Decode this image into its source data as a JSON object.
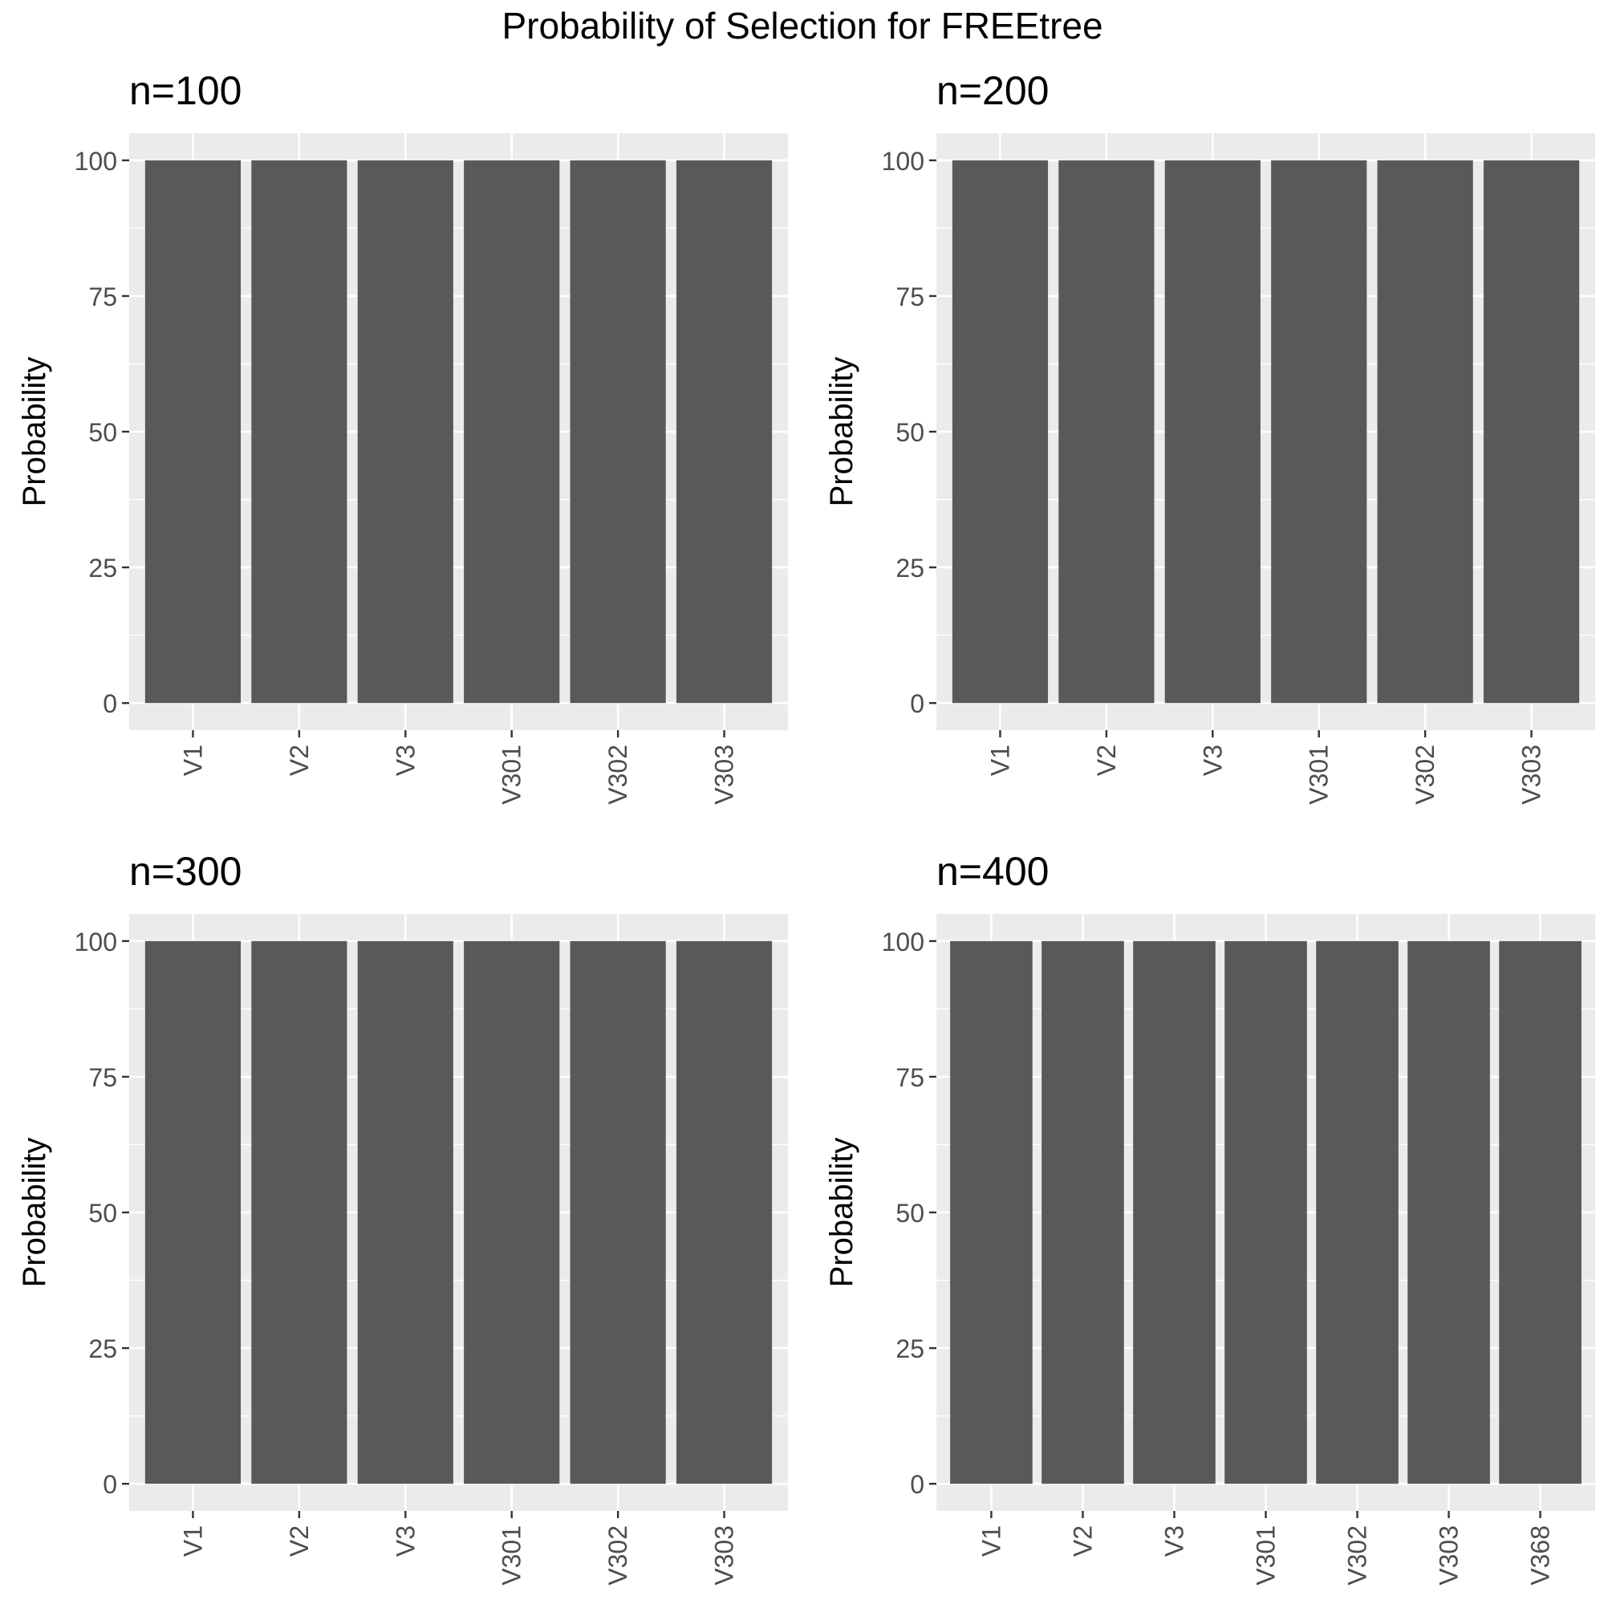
{
  "figure": {
    "title": "Probability of Selection for FREEtree"
  },
  "colors": {
    "panel_background": "#ebebeb",
    "grid": "#ffffff",
    "bar": "#595959",
    "tick_text": "#4d4d4d",
    "tick_mark": "#333333"
  },
  "chart_data": [
    {
      "type": "bar",
      "title": "n=100",
      "xlabel": "",
      "ylabel": "Probability",
      "ylim": [
        -5,
        105
      ],
      "yticks": [
        0,
        25,
        50,
        75,
        100
      ],
      "grid": true,
      "categories": [
        "V1",
        "V2",
        "V3",
        "V301",
        "V302",
        "V303"
      ],
      "values": [
        100,
        100,
        100,
        100,
        100,
        100
      ]
    },
    {
      "type": "bar",
      "title": "n=200",
      "xlabel": "",
      "ylabel": "Probability",
      "ylim": [
        -5,
        105
      ],
      "yticks": [
        0,
        25,
        50,
        75,
        100
      ],
      "grid": true,
      "categories": [
        "V1",
        "V2",
        "V3",
        "V301",
        "V302",
        "V303"
      ],
      "values": [
        100,
        100,
        100,
        100,
        100,
        100
      ]
    },
    {
      "type": "bar",
      "title": "n=300",
      "xlabel": "",
      "ylabel": "Probability",
      "ylim": [
        -5,
        105
      ],
      "yticks": [
        0,
        25,
        50,
        75,
        100
      ],
      "grid": true,
      "categories": [
        "V1",
        "V2",
        "V3",
        "V301",
        "V302",
        "V303"
      ],
      "values": [
        100,
        100,
        100,
        100,
        100,
        100
      ]
    },
    {
      "type": "bar",
      "title": "n=400",
      "xlabel": "",
      "ylabel": "Probability",
      "ylim": [
        -5,
        105
      ],
      "yticks": [
        0,
        25,
        50,
        75,
        100
      ],
      "grid": true,
      "categories": [
        "V1",
        "V2",
        "V3",
        "V301",
        "V302",
        "V303",
        "V368"
      ],
      "values": [
        100,
        100,
        100,
        100,
        100,
        100,
        100
      ]
    }
  ]
}
